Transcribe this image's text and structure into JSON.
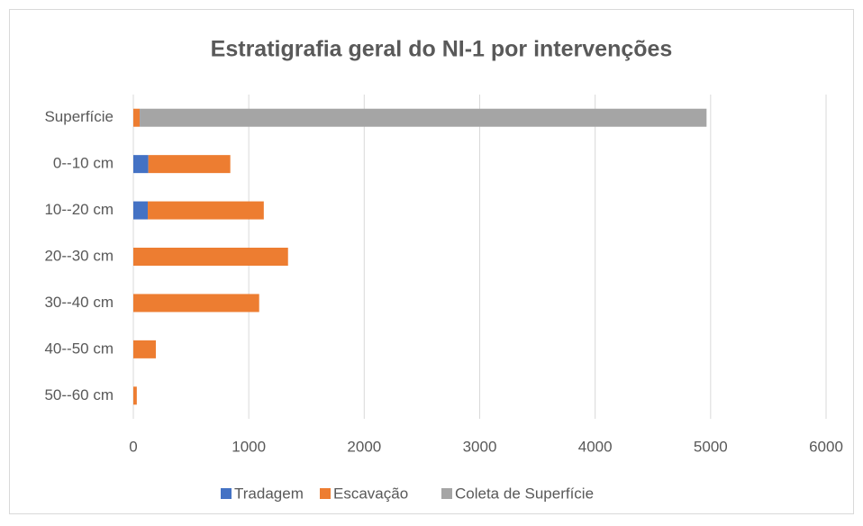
{
  "chart_data": {
    "type": "bar",
    "orientation": "horizontal",
    "stacked": true,
    "title": "Estratigrafia geral do NI-1 por intervenções",
    "categories": [
      "Superfície",
      "0--10 cm",
      "10--20 cm",
      "20--30 cm",
      "30--40 cm",
      "40--50 cm",
      "50--60 cm"
    ],
    "series": [
      {
        "name": "Tradagem",
        "color": "#4472c4",
        "values": [
          0,
          130,
          125,
          0,
          0,
          0,
          0
        ]
      },
      {
        "name": "Escavação",
        "color": "#ed7d31",
        "values": [
          55,
          710,
          1005,
          1340,
          1090,
          195,
          30
        ]
      },
      {
        "name": "Coleta de Superfície",
        "color": "#a5a5a5",
        "values": [
          4910,
          0,
          0,
          0,
          0,
          0,
          0
        ]
      }
    ],
    "xlim": [
      0,
      6000
    ],
    "xticks": [
      0,
      1000,
      2000,
      3000,
      4000,
      5000,
      6000
    ],
    "grid": true,
    "legend": "bottom"
  }
}
